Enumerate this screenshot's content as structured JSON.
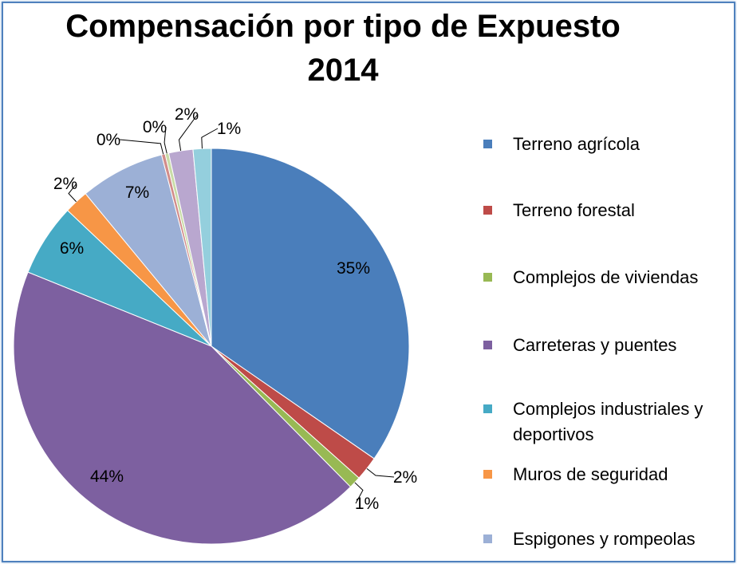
{
  "title_line1": "Compensación por tipo de Expuesto",
  "title_line2": "2014",
  "chart_data": {
    "type": "pie",
    "title": "Compensación por tipo de Expuesto 2014",
    "slices": [
      {
        "label": "Terreno agrícola",
        "value": 35,
        "data_label": "35%",
        "color": "#4a7ebb"
      },
      {
        "label": "Terreno forestal",
        "value": 2,
        "data_label": "2%",
        "color": "#be4b48"
      },
      {
        "label": "Complejos de viviendas",
        "value": 1,
        "data_label": "1%",
        "color": "#98b954"
      },
      {
        "label": "Carreteras y puentes",
        "value": 44,
        "data_label": "44%",
        "color": "#7d60a0"
      },
      {
        "label": "Complejos industriales y deportivos",
        "value": 6,
        "data_label": "6%",
        "color": "#46aac5"
      },
      {
        "label": "Muros de seguridad",
        "value": 2,
        "data_label": "2%",
        "color": "#f79646"
      },
      {
        "label": "Espigones y rompeolas",
        "value": 7,
        "data_label": "7%",
        "color": "#9cb0d6"
      },
      {
        "label": "",
        "value": 0.3,
        "data_label": "0%",
        "color": "#d28c8a"
      },
      {
        "label": "",
        "value": 0.3,
        "data_label": "0%",
        "color": "#c9dca7"
      },
      {
        "label": "",
        "value": 2,
        "data_label": "2%",
        "color": "#b9a7cf"
      },
      {
        "label": "",
        "value": 1.5,
        "data_label": "1%",
        "color": "#94cfdd"
      }
    ],
    "legend_position": "right"
  }
}
